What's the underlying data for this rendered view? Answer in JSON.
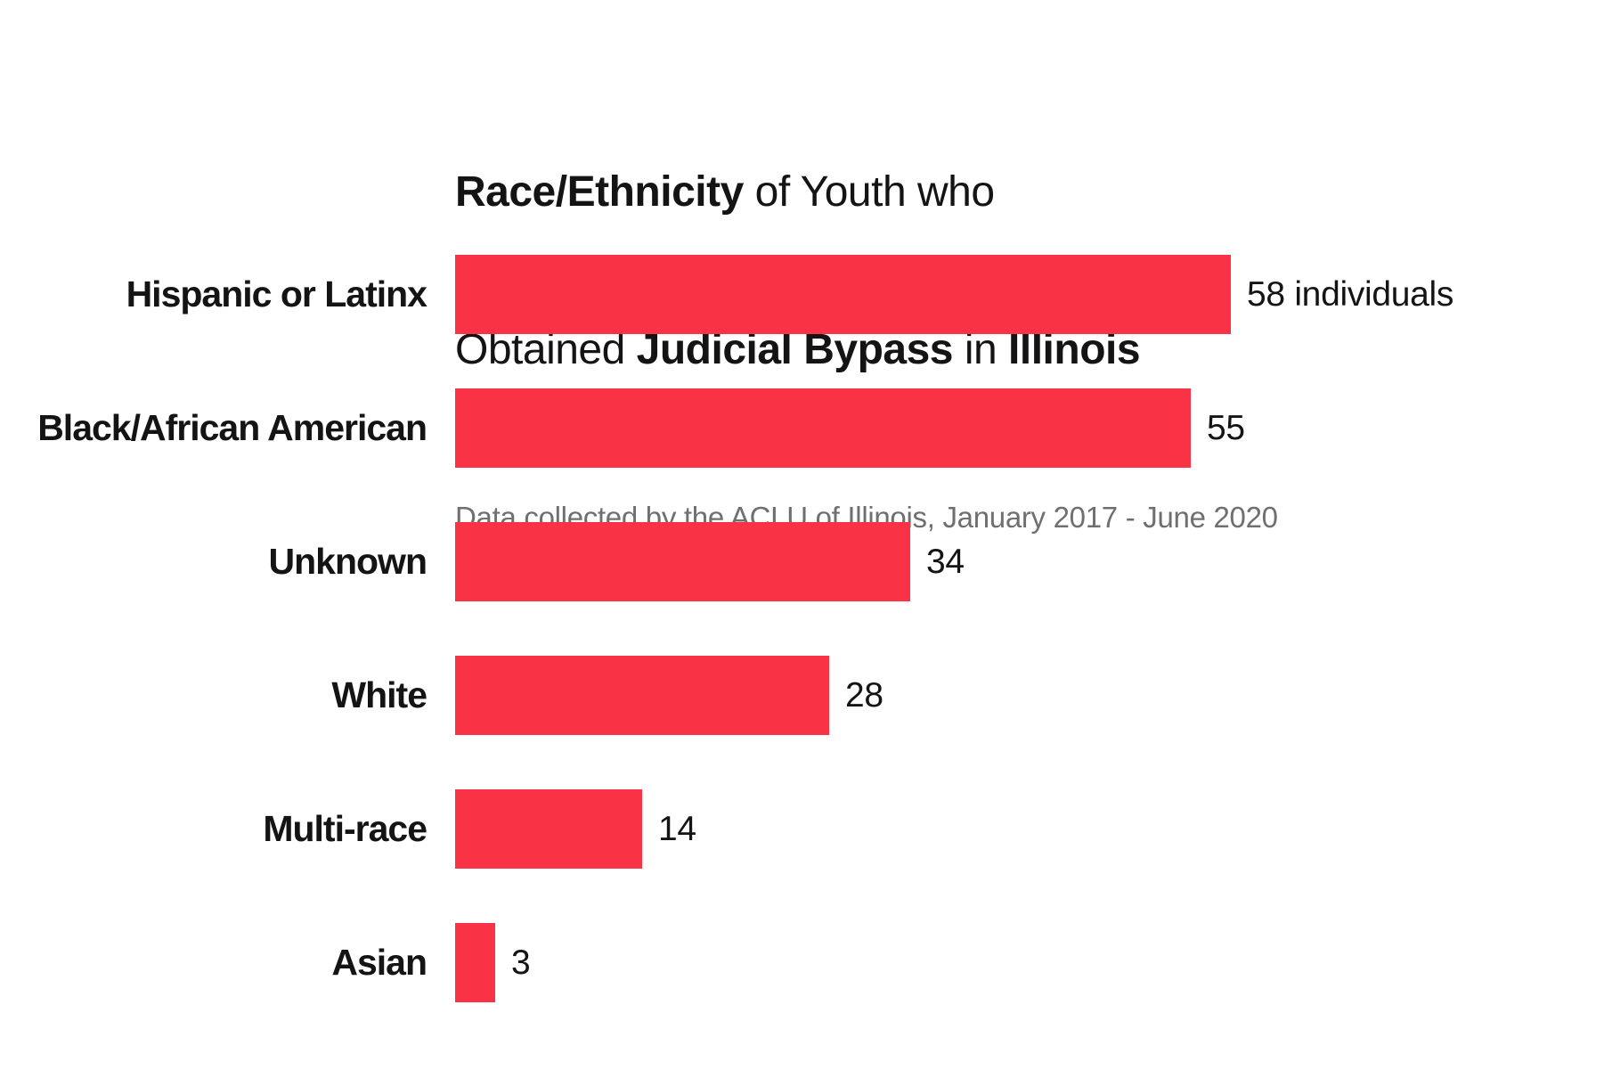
{
  "header": {
    "title_line1": {
      "bold": "Race/Ethnicity",
      "regular": " of Youth who"
    },
    "title_line2": {
      "regular1": "Obtained ",
      "bold1": "Judicial Bypass",
      "regular2": " in ",
      "bold2": "Illinois"
    },
    "subtitle": "Data collected by the ACLU of Illinois, January 2017 - June 2020"
  },
  "chart_data": {
    "type": "bar",
    "orientation": "horizontal",
    "title": "Race/Ethnicity of Youth who Obtained Judicial Bypass in Illinois",
    "subtitle": "Data collected by the ACLU of Illinois, January 2017 - June 2020",
    "categories": [
      "Hispanic or Latinx",
      "Black/African American",
      "Unknown",
      "White",
      "Multi-race",
      "Asian"
    ],
    "values": [
      58,
      55,
      34,
      28,
      14,
      3
    ],
    "value_labels": [
      "58 individuals",
      "55",
      "34",
      "28",
      "14",
      "3"
    ],
    "value_unit": "individuals",
    "xlim": [
      0,
      58
    ],
    "grid": false,
    "legend": false,
    "bar_color": "#FA3245",
    "label_color": "#141414",
    "subtitle_color": "#6F6F6F",
    "background_color": "#FFFFFF"
  }
}
